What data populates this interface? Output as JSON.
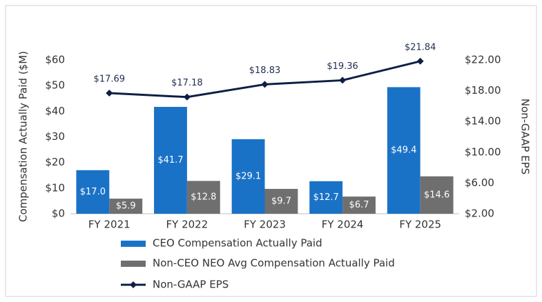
{
  "chart_data": {
    "type": "bar",
    "categories": [
      "FY 2021",
      "FY 2022",
      "FY 2023",
      "FY 2024",
      "FY 2025"
    ],
    "ylabel": "Compensation Actually Paid ($M)",
    "y2label": "Non-GAAP EPS",
    "ylim": [
      0,
      60
    ],
    "yticks": [
      {
        "value": 0,
        "label": "$0"
      },
      {
        "value": 10,
        "label": "$10"
      },
      {
        "value": 20,
        "label": "$20"
      },
      {
        "value": 30,
        "label": "$30"
      },
      {
        "value": 40,
        "label": "$40"
      },
      {
        "value": 50,
        "label": "$50"
      },
      {
        "value": 60,
        "label": "$60"
      }
    ],
    "y2lim": [
      2,
      22
    ],
    "y2ticks": [
      {
        "value": 2,
        "label": "$2.00"
      },
      {
        "value": 6,
        "label": "$6.00"
      },
      {
        "value": 10,
        "label": "$10.00"
      },
      {
        "value": 14,
        "label": "$14.00"
      },
      {
        "value": 18,
        "label": "$18.00"
      },
      {
        "value": 22,
        "label": "$22.00"
      }
    ],
    "legend": "bottom",
    "series": [
      {
        "name": "CEO Compensation Actually Paid",
        "color": "#1a72c7",
        "type": "bar",
        "values": [
          17.0,
          41.7,
          29.1,
          12.7,
          49.4
        ],
        "value_labels": [
          "$17.0",
          "$41.7",
          "$29.1",
          "$12.7",
          "$49.4"
        ]
      },
      {
        "name": "Non-CEO NEO Avg Compensation Actually Paid",
        "color": "#6f6f6f",
        "type": "bar",
        "values": [
          5.9,
          12.8,
          9.7,
          6.7,
          14.6
        ],
        "value_labels": [
          "$5.9",
          "$12.8",
          "$9.7",
          "$6.7",
          "$14.6"
        ]
      },
      {
        "name": "Non-GAAP EPS",
        "color": "#0d1f45",
        "type": "line",
        "axis": "y2",
        "values": [
          17.69,
          17.18,
          18.83,
          19.36,
          21.84
        ],
        "value_labels": [
          "$17.69",
          "$17.18",
          "$18.83",
          "$19.36",
          "$21.84"
        ]
      }
    ]
  }
}
